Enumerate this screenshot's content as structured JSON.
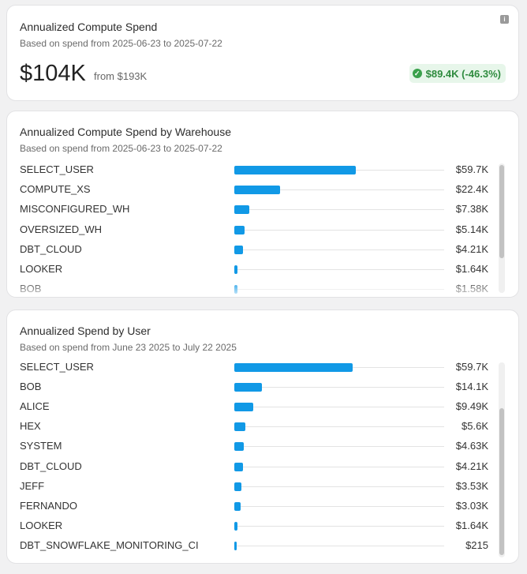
{
  "summary": {
    "title": "Annualized Compute Spend",
    "subtitle": "Based on spend from 2025-06-23 to 2025-07-22",
    "value": "$104K",
    "from": "from $193K",
    "delta": "$89.4K (-46.3%)",
    "info_icon": "info-icon",
    "delta_icon": "check-circle-icon"
  },
  "warehouse": {
    "title": "Annualized Compute Spend by Warehouse",
    "subtitle": "Based on spend from 2025-06-23 to 2025-07-22",
    "rows": [
      {
        "label": "SELECT_USER",
        "value": "$59.7K",
        "amount": 59700
      },
      {
        "label": "COMPUTE_XS",
        "value": "$22.4K",
        "amount": 22400
      },
      {
        "label": "MISCONFIGURED_WH",
        "value": "$7.38K",
        "amount": 7380
      },
      {
        "label": "OVERSIZED_WH",
        "value": "$5.14K",
        "amount": 5140
      },
      {
        "label": "DBT_CLOUD",
        "value": "$4.21K",
        "amount": 4210
      },
      {
        "label": "LOOKER",
        "value": "$1.64K",
        "amount": 1640
      },
      {
        "label": "BOB",
        "value": "$1.58K",
        "amount": 1580
      }
    ]
  },
  "users": {
    "title": "Annualized Spend by User",
    "subtitle": "Based on spend from June 23 2025 to July 22 2025",
    "rows": [
      {
        "label": "SELECT_USER",
        "value": "$59.7K",
        "amount": 59700
      },
      {
        "label": "BOB",
        "value": "$14.1K",
        "amount": 14100
      },
      {
        "label": "ALICE",
        "value": "$9.49K",
        "amount": 9490
      },
      {
        "label": "HEX",
        "value": "$5.6K",
        "amount": 5600
      },
      {
        "label": "SYSTEM",
        "value": "$4.63K",
        "amount": 4630
      },
      {
        "label": "DBT_CLOUD",
        "value": "$4.21K",
        "amount": 4210
      },
      {
        "label": "JEFF",
        "value": "$3.53K",
        "amount": 3530
      },
      {
        "label": "FERNANDO",
        "value": "$3.03K",
        "amount": 3030
      },
      {
        "label": "LOOKER",
        "value": "$1.64K",
        "amount": 1640
      },
      {
        "label": "DBT_SNOWFLAKE_MONITORING_CI",
        "value": "$215",
        "amount": 215
      }
    ]
  },
  "colors": {
    "bar": "#1199e6",
    "positive": "#2e8b3e",
    "positive_bg": "#e7f6ea"
  }
}
